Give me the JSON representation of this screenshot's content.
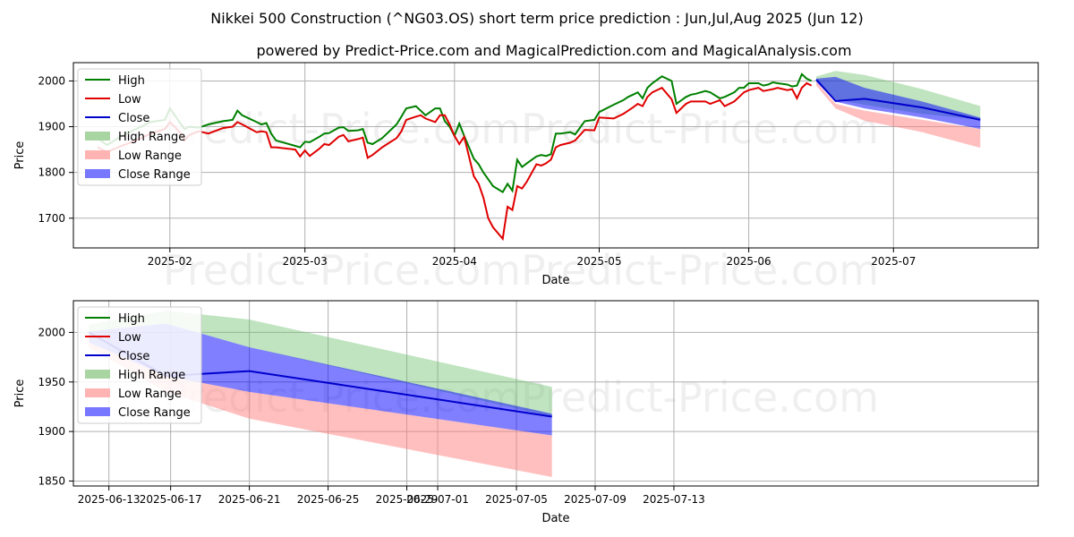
{
  "header": {
    "title": "Nikkei 500 Construction (^NG03.OS) short term price prediction : Jun,Jul,Aug 2025 (Jun 12)",
    "subtitle": "powered by Predict-Price.com and MagicalPrediction.com and MagicalAnalysis.com"
  },
  "watermark": "Predict-Price.com",
  "colors": {
    "high": "#008000",
    "low": "#e00000",
    "close": "#0000cc",
    "high_range": "#a8d5a2",
    "low_range": "#ffaaaa",
    "close_range": "#6666ff"
  },
  "chart_data": [
    {
      "type": "line",
      "xlabel": "Date",
      "ylabel": "Price",
      "xlim": [
        0,
        200
      ],
      "ylim": [
        1635,
        2040
      ],
      "yticks": [
        1700,
        1800,
        1900,
        2000
      ],
      "xticks": [
        {
          "x": 20,
          "label": "2025-02"
        },
        {
          "x": 48,
          "label": "2025-03"
        },
        {
          "x": 79,
          "label": "2025-04"
        },
        {
          "x": 109,
          "label": "2025-05"
        },
        {
          "x": 140,
          "label": "2025-06"
        },
        {
          "x": 170,
          "label": "2025-07"
        }
      ],
      "legend": [
        {
          "key": "high",
          "label": "High",
          "kind": "line"
        },
        {
          "key": "low",
          "label": "Low",
          "kind": "line"
        },
        {
          "key": "close",
          "label": "Close",
          "kind": "line"
        },
        {
          "key": "high_range",
          "label": "High Range",
          "kind": "patch"
        },
        {
          "key": "low_range",
          "label": "Low Range",
          "kind": "patch"
        },
        {
          "key": "close_range",
          "label": "Close Range",
          "kind": "patch"
        }
      ],
      "high": {
        "x": [
          5,
          7,
          10,
          13,
          16,
          19,
          20,
          21,
          22,
          23,
          24,
          26,
          28,
          31,
          33,
          34,
          35,
          38,
          39,
          40,
          41,
          42,
          46,
          47,
          48,
          49,
          51,
          52,
          53,
          55,
          56,
          57,
          59,
          60,
          61,
          62,
          64,
          67,
          68,
          69,
          71,
          72,
          73,
          75,
          76,
          77,
          78,
          79,
          80,
          81,
          83,
          84,
          85,
          86,
          87,
          89,
          90,
          91,
          92,
          93,
          94,
          96,
          97,
          98,
          99,
          100,
          101,
          103,
          104,
          106,
          108,
          109,
          112,
          114,
          115,
          116,
          117,
          118,
          119,
          120,
          122,
          124,
          125,
          127,
          128,
          129,
          131,
          132,
          134,
          135,
          137,
          138,
          139,
          140,
          142,
          143,
          144,
          145,
          146,
          148,
          149,
          150,
          151,
          152,
          153
        ],
        "y": [
          1875,
          1860,
          1880,
          1895,
          1910,
          1915,
          1940,
          1925,
          1910,
          1895,
          1900,
          1898,
          1905,
          1912,
          1915,
          1935,
          1925,
          1910,
          1905,
          1908,
          1885,
          1870,
          1858,
          1855,
          1867,
          1866,
          1878,
          1885,
          1886,
          1898,
          1899,
          1891,
          1892,
          1895,
          1865,
          1862,
          1875,
          1905,
          1922,
          1940,
          1945,
          1935,
          1925,
          1940,
          1940,
          1912,
          1900,
          1880,
          1907,
          1880,
          1830,
          1818,
          1800,
          1785,
          1770,
          1757,
          1775,
          1760,
          1828,
          1812,
          1820,
          1835,
          1838,
          1836,
          1840,
          1885,
          1885,
          1888,
          1883,
          1912,
          1915,
          1932,
          1948,
          1958,
          1965,
          1970,
          1975,
          1962,
          1985,
          1995,
          2010,
          2000,
          1950,
          1965,
          1970,
          1972,
          1978,
          1975,
          1962,
          1965,
          1975,
          1985,
          1985,
          1995,
          1995,
          1990,
          1992,
          1997,
          1995,
          1992,
          1988,
          1990,
          2015,
          2005,
          2000
        ]
      },
      "low": {
        "x": [
          5,
          7,
          10,
          13,
          16,
          19,
          20,
          21,
          22,
          23,
          24,
          26,
          28,
          31,
          33,
          34,
          35,
          38,
          39,
          40,
          41,
          42,
          46,
          47,
          48,
          49,
          51,
          52,
          53,
          55,
          56,
          57,
          59,
          60,
          61,
          62,
          64,
          67,
          68,
          69,
          71,
          72,
          73,
          75,
          76,
          77,
          78,
          79,
          80,
          81,
          83,
          84,
          85,
          86,
          87,
          89,
          90,
          91,
          92,
          93,
          94,
          96,
          97,
          98,
          99,
          100,
          101,
          103,
          104,
          106,
          108,
          109,
          112,
          114,
          115,
          116,
          117,
          118,
          119,
          120,
          122,
          124,
          125,
          127,
          128,
          129,
          131,
          132,
          134,
          135,
          137,
          138,
          139,
          140,
          142,
          143,
          144,
          145,
          146,
          148,
          149,
          150,
          151,
          152,
          153
        ],
        "y": [
          1855,
          1845,
          1858,
          1870,
          1885,
          1895,
          1910,
          1900,
          1888,
          1870,
          1882,
          1890,
          1885,
          1897,
          1900,
          1910,
          1905,
          1888,
          1890,
          1888,
          1855,
          1855,
          1850,
          1835,
          1848,
          1836,
          1852,
          1862,
          1860,
          1878,
          1882,
          1868,
          1873,
          1876,
          1832,
          1838,
          1855,
          1875,
          1890,
          1915,
          1922,
          1925,
          1918,
          1910,
          1925,
          1925,
          1905,
          1880,
          1862,
          1878,
          1792,
          1775,
          1745,
          1700,
          1680,
          1655,
          1725,
          1718,
          1770,
          1765,
          1780,
          1818,
          1815,
          1820,
          1828,
          1855,
          1860,
          1865,
          1870,
          1893,
          1892,
          1920,
          1918,
          1928,
          1935,
          1942,
          1950,
          1945,
          1965,
          1975,
          1985,
          1960,
          1930,
          1950,
          1955,
          1955,
          1955,
          1950,
          1958,
          1945,
          1955,
          1965,
          1975,
          1980,
          1985,
          1978,
          1980,
          1982,
          1985,
          1980,
          1982,
          1962,
          1985,
          1995,
          1990
        ]
      },
      "close_forecast": {
        "x": [
          154,
          158,
          164,
          176,
          188
        ],
        "y": [
          2003,
          1956,
          1961,
          1942,
          1915
        ]
      },
      "high_range": {
        "x": [
          154,
          158,
          164,
          176,
          188
        ],
        "upper": [
          2010,
          2022,
          2013,
          1982,
          1945
        ],
        "lower": [
          2000,
          1960,
          1948,
          1928,
          1915
        ]
      },
      "low_range": {
        "x": [
          154,
          158,
          164,
          176,
          188
        ],
        "upper": [
          1998,
          1950,
          1935,
          1915,
          1895
        ],
        "lower": [
          1990,
          1940,
          1913,
          1888,
          1854
        ]
      },
      "close_range": {
        "x": [
          154,
          158,
          164,
          176,
          188
        ],
        "upper": [
          2005,
          2009,
          1985,
          1955,
          1920
        ],
        "lower": [
          1998,
          1955,
          1940,
          1920,
          1895
        ]
      }
    },
    {
      "type": "line",
      "xlabel": "Date",
      "ylabel": "Price",
      "xlim": [
        -1,
        61.5
      ],
      "ylim": [
        1845,
        2032
      ],
      "yticks": [
        1850,
        1900,
        1950,
        2000
      ],
      "xticks": [
        {
          "x": 1,
          "label": "2025-06-13"
        },
        {
          "x": 5,
          "label": "2025-06-17"
        },
        {
          "x": 10,
          "label": "2025-06-21"
        },
        {
          "x": 14,
          "label": "2025-06-25"
        },
        {
          "x": 18,
          "label": "2025-06-29"
        },
        {
          "x": 19,
          "label": "2025-07-01"
        },
        {
          "x": 23,
          "label": "2025-07-05"
        },
        {
          "x": 27,
          "label": "2025-07-09"
        },
        {
          "x": 31,
          "label": "2025-07-13"
        }
      ],
      "tick_positions": [
        1.3,
        5.3,
        10.4,
        15.5,
        20.6,
        22.6,
        27.7,
        32.8,
        37.9
      ],
      "legend": [
        {
          "key": "high",
          "label": "High",
          "kind": "line"
        },
        {
          "key": "low",
          "label": "Low",
          "kind": "line"
        },
        {
          "key": "close",
          "label": "Close",
          "kind": "line"
        },
        {
          "key": "high_range",
          "label": "High Range",
          "kind": "patch"
        },
        {
          "key": "low_range",
          "label": "Low Range",
          "kind": "patch"
        },
        {
          "key": "close_range",
          "label": "Close Range",
          "kind": "patch"
        }
      ],
      "close_forecast": {
        "x": [
          0,
          5,
          10.4,
          30
        ],
        "y": [
          2000,
          1956,
          1961,
          1915
        ]
      },
      "high_range": {
        "x": [
          0,
          5,
          10.4,
          30
        ],
        "upper": [
          2008,
          2022,
          2013,
          1945
        ],
        "lower": [
          2001,
          2009,
          1985,
          1915
        ]
      },
      "low_range": {
        "x": [
          0,
          5,
          10.4,
          30
        ],
        "upper": [
          1990,
          1956,
          1940,
          1896
        ],
        "lower": [
          1985,
          1940,
          1913,
          1854
        ]
      },
      "close_range": {
        "x": [
          0,
          5,
          10.4,
          30
        ],
        "upper": [
          2001,
          2009,
          1985,
          1918
        ],
        "lower": [
          1990,
          1956,
          1940,
          1896
        ]
      }
    }
  ]
}
